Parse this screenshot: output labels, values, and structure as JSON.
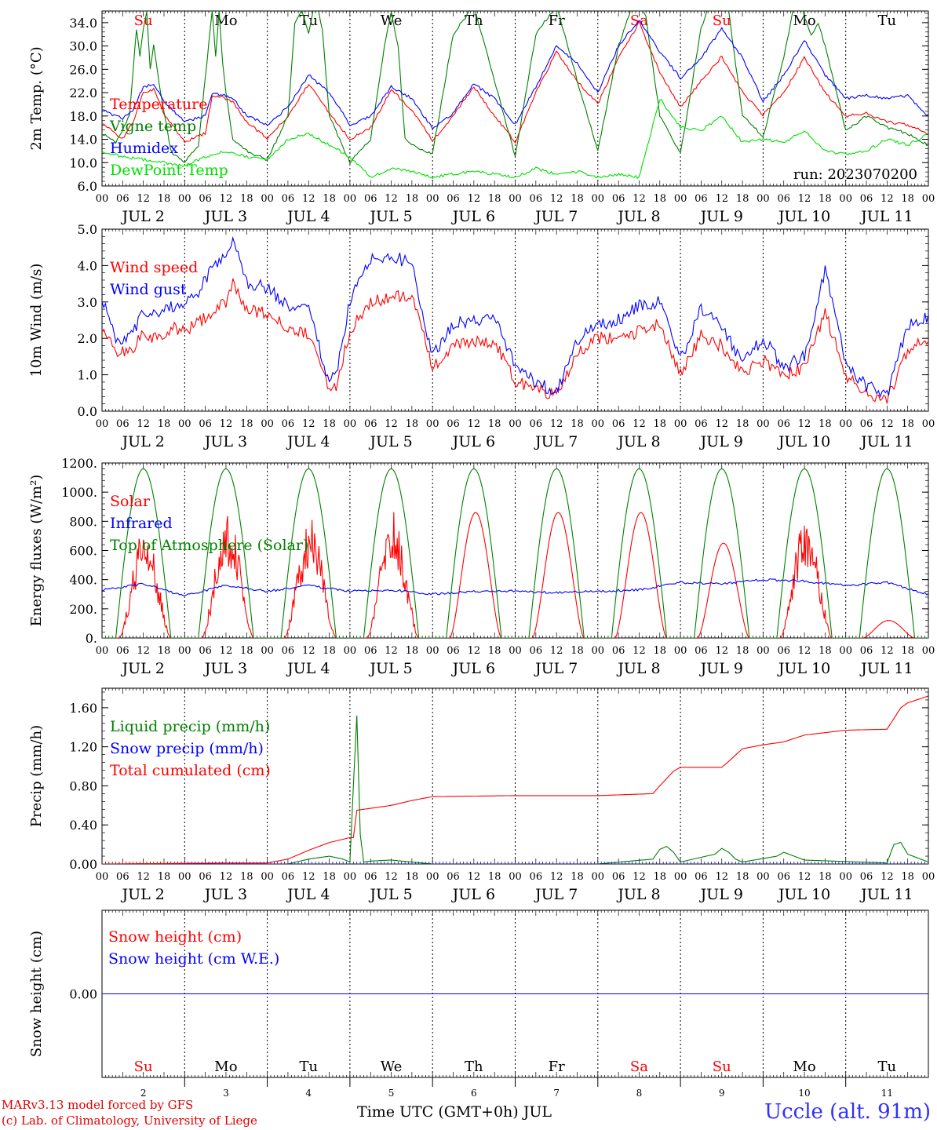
{
  "footer": {
    "model_line": "MARv3.13 model forced by GFS",
    "credit_line": "(c) Lab. of Climatology, University of Liege",
    "station": "Uccle (alt. 91m)",
    "time_axis_label": "Time UTC (GMT+0h) JUL"
  },
  "days": {
    "weekday_labels": [
      "Su",
      "Mo",
      "Tu",
      "We",
      "Th",
      "Fr",
      "Sa",
      "Su",
      "Mo",
      "Tu"
    ],
    "weekend_flags": [
      true,
      false,
      false,
      false,
      false,
      false,
      true,
      true,
      false,
      false
    ],
    "date_labels": [
      "JUL  2",
      "JUL  3",
      "JUL  4",
      "JUL  5",
      "JUL  6",
      "JUL  7",
      "JUL  8",
      "JUL  9",
      "JUL 10",
      "JUL 11"
    ],
    "day_numbers": [
      "2",
      "3",
      "4",
      "5",
      "6",
      "7",
      "8",
      "9",
      "10",
      "11"
    ],
    "hour_labels": [
      "00",
      "06",
      "12",
      "18"
    ],
    "end_hour_label": "00"
  },
  "colors": {
    "red": "#ff0000",
    "green": "#008000",
    "lightgreen": "#00e000",
    "blue": "#0000ff",
    "purple": "#800080"
  },
  "chart_data": [
    {
      "type": "line",
      "ylabel": "2m Temp. (°C)",
      "ylim": [
        6,
        36
      ],
      "yticks": [
        "6.0",
        "10.0",
        "14.0",
        "18.0",
        "22.0",
        "26.0",
        "30.0",
        "34.0"
      ],
      "annotation": "run: 2023070200",
      "x_unit": "hours since JUL 2 00 UTC",
      "series": [
        {
          "name": "Temperature",
          "color": "red",
          "x": [
            0,
            6,
            9,
            12,
            15,
            18,
            24,
            30,
            32,
            36,
            38,
            42,
            48,
            54,
            60,
            66,
            72,
            78,
            84,
            90,
            96,
            102,
            108,
            114,
            120,
            126,
            132,
            138,
            144,
            150,
            156,
            162,
            168,
            174,
            180,
            186,
            192,
            198,
            204,
            210,
            216,
            222,
            228,
            234,
            240
          ],
          "values": [
            16.8,
            14.0,
            17.0,
            22.0,
            22.6,
            18.5,
            13.5,
            15.0,
            21.5,
            21.0,
            20.5,
            17.0,
            14.2,
            18.0,
            23.5,
            18.5,
            14.0,
            16.0,
            22.5,
            19.0,
            13.8,
            18.0,
            23.0,
            18.0,
            13.5,
            22.0,
            29.0,
            24.0,
            20.0,
            28.0,
            34.0,
            25.5,
            19.5,
            24.0,
            28.2,
            22.0,
            18.2,
            22.0,
            28.0,
            22.0,
            18.0,
            18.5,
            17.0,
            16.5,
            15.0
          ]
        },
        {
          "name": "Vigne temp",
          "color": "green",
          "x": [
            0,
            4,
            8,
            10,
            11,
            12,
            13,
            14,
            15,
            17,
            20,
            24,
            28,
            32,
            33,
            34,
            35,
            36,
            38,
            42,
            48,
            54,
            56,
            58,
            60,
            62,
            64,
            66,
            72,
            78,
            82,
            84,
            86,
            88,
            90,
            96,
            102,
            108,
            114,
            120,
            126,
            132,
            138,
            144,
            150,
            154,
            156,
            158,
            162,
            168,
            174,
            178,
            180,
            182,
            186,
            192,
            198,
            202,
            204,
            206,
            208,
            210,
            216,
            222,
            228,
            234,
            240
          ],
          "values": [
            15.0,
            13.5,
            18.0,
            33.0,
            28.0,
            33.0,
            36.0,
            26.0,
            30.0,
            22.0,
            12.0,
            10.0,
            13.0,
            36.0,
            28.0,
            36.0,
            27.0,
            22.0,
            14.0,
            12.0,
            10.5,
            18.0,
            34.0,
            36.0,
            32.0,
            38.0,
            33.0,
            18.0,
            10.0,
            14.0,
            30.0,
            36.0,
            30.0,
            14.0,
            13.0,
            11.5,
            32.0,
            37.0,
            24.0,
            11.0,
            32.0,
            37.0,
            24.0,
            12.0,
            30.0,
            37.0,
            37.0,
            35.0,
            18.0,
            11.5,
            33.0,
            40.0,
            40.0,
            36.0,
            18.0,
            14.5,
            28.0,
            40.0,
            35.0,
            32.0,
            34.0,
            30.0,
            15.5,
            18.0,
            16.0,
            15.0,
            13.0
          ]
        },
        {
          "name": "Humidex",
          "color": "blue",
          "x": [
            0,
            6,
            9,
            12,
            15,
            18,
            24,
            30,
            32,
            36,
            38,
            42,
            48,
            54,
            60,
            66,
            72,
            78,
            84,
            90,
            96,
            102,
            108,
            114,
            120,
            126,
            132,
            138,
            144,
            150,
            156,
            162,
            168,
            174,
            180,
            186,
            192,
            198,
            204,
            210,
            216,
            222,
            228,
            234,
            240
          ],
          "values": [
            19.0,
            17.5,
            19.0,
            23.0,
            23.5,
            20.5,
            17.0,
            18.0,
            22.0,
            21.5,
            21.0,
            18.0,
            16.5,
            19.5,
            25.0,
            22.0,
            16.5,
            18.0,
            23.0,
            21.0,
            15.8,
            18.5,
            23.5,
            21.0,
            16.5,
            23.0,
            30.0,
            27.0,
            22.0,
            30.0,
            34.5,
            29.0,
            24.5,
            28.0,
            33.0,
            28.0,
            20.5,
            25.0,
            31.0,
            25.0,
            21.0,
            21.5,
            21.0,
            21.5,
            18.0
          ]
        },
        {
          "name": "DewPoint Temp",
          "color": "lightgreen",
          "x": [
            0,
            6,
            12,
            18,
            24,
            30,
            36,
            42,
            48,
            54,
            60,
            66,
            72,
            78,
            84,
            90,
            96,
            102,
            108,
            114,
            120,
            126,
            132,
            138,
            144,
            150,
            156,
            162,
            168,
            174,
            180,
            186,
            192,
            198,
            204,
            210,
            216,
            222,
            228,
            234,
            240
          ],
          "values": [
            12.0,
            11.0,
            10.5,
            10.0,
            9.5,
            11.0,
            12.0,
            11.0,
            10.5,
            14.0,
            15.0,
            13.0,
            11.0,
            7.5,
            9.0,
            8.5,
            7.5,
            8.0,
            8.5,
            8.0,
            7.5,
            9.0,
            8.0,
            8.5,
            7.5,
            8.0,
            7.5,
            21.0,
            16.0,
            15.5,
            18.0,
            13.5,
            14.0,
            13.5,
            15.5,
            12.0,
            11.5,
            12.0,
            14.0,
            13.0,
            15.0
          ]
        }
      ]
    },
    {
      "type": "line",
      "ylabel": "10m Wind (m/s)",
      "ylim": [
        0,
        5
      ],
      "yticks": [
        "0.0",
        "1.0",
        "2.0",
        "3.0",
        "4.0",
        "5.0"
      ],
      "x_unit": "hours since JUL 2 00 UTC",
      "series": [
        {
          "name": "Wind speed",
          "color": "red",
          "x": [
            0,
            4,
            8,
            12,
            16,
            20,
            24,
            28,
            32,
            36,
            38,
            42,
            48,
            54,
            60,
            66,
            68,
            72,
            78,
            84,
            90,
            96,
            102,
            108,
            114,
            120,
            126,
            132,
            138,
            144,
            150,
            156,
            162,
            168,
            174,
            180,
            186,
            192,
            198,
            204,
            210,
            216,
            222,
            228,
            234,
            240
          ],
          "values": [
            2.3,
            1.6,
            1.6,
            2.1,
            2.0,
            2.3,
            2.2,
            2.4,
            2.7,
            3.0,
            3.6,
            2.8,
            2.7,
            2.3,
            2.1,
            0.6,
            0.7,
            2.2,
            3.0,
            3.1,
            3.2,
            1.2,
            1.8,
            1.9,
            1.9,
            0.8,
            0.6,
            0.4,
            1.6,
            2.0,
            2.0,
            2.2,
            2.4,
            1.0,
            2.1,
            1.8,
            1.0,
            1.4,
            1.0,
            1.2,
            2.7,
            1.0,
            0.5,
            0.3,
            1.7,
            2.0
          ]
        },
        {
          "name": "Wind gust",
          "color": "blue",
          "x": [
            0,
            4,
            8,
            12,
            16,
            20,
            24,
            28,
            32,
            36,
            38,
            42,
            48,
            54,
            60,
            66,
            68,
            72,
            78,
            84,
            90,
            96,
            102,
            108,
            114,
            120,
            126,
            132,
            138,
            144,
            150,
            156,
            162,
            168,
            174,
            180,
            186,
            192,
            198,
            204,
            210,
            216,
            222,
            228,
            234,
            240
          ],
          "values": [
            3.1,
            2.0,
            2.0,
            2.7,
            2.6,
            2.9,
            2.9,
            3.3,
            3.9,
            4.2,
            4.8,
            3.5,
            3.4,
            2.9,
            2.8,
            0.8,
            1.0,
            3.0,
            4.2,
            4.3,
            4.0,
            1.5,
            2.4,
            2.5,
            2.6,
            1.2,
            0.8,
            0.5,
            1.9,
            2.4,
            2.5,
            2.9,
            3.0,
            1.4,
            2.8,
            2.3,
            1.3,
            2.0,
            1.2,
            1.5,
            3.9,
            1.3,
            0.7,
            0.4,
            2.4,
            2.6
          ]
        }
      ]
    },
    {
      "type": "line",
      "ylabel": "Energy fluxes (W/m²)",
      "ylim": [
        0,
        1200
      ],
      "yticks": [
        "0.",
        "200.",
        "400.",
        "600.",
        "800.",
        "1000.",
        "1200."
      ],
      "x_unit": "hours since JUL 2 00 UTC",
      "series": [
        {
          "name": "Solar",
          "color": "red",
          "day_peaks": [
            760,
            860,
            830,
            870,
            860,
            860,
            860,
            650,
            830,
            120
          ],
          "day_start_hour": 5,
          "day_end_hour": 20
        },
        {
          "name": "Infrared",
          "color": "blue",
          "x": [
            0,
            12,
            24,
            36,
            48,
            60,
            72,
            84,
            96,
            108,
            120,
            132,
            144,
            156,
            168,
            180,
            192,
            204,
            216,
            228,
            240
          ],
          "values": [
            330,
            370,
            290,
            360,
            320,
            360,
            320,
            330,
            300,
            320,
            320,
            310,
            320,
            330,
            380,
            370,
            400,
            390,
            360,
            380,
            300
          ]
        },
        {
          "name": "Top of Atmosphere (Solar)",
          "color": "green",
          "peak": 1160,
          "day_start_hour": 4,
          "day_end_hour": 20
        }
      ]
    },
    {
      "type": "line",
      "ylabel": "Precip (mm/h)",
      "ylim": [
        0,
        1.8
      ],
      "yticks": [
        "0.00",
        "0.40",
        "0.80",
        "1.20",
        "1.60"
      ],
      "x_unit": "hours since JUL 2 00 UTC",
      "series": [
        {
          "name": "Liquid precip (mm/h)",
          "color": "green",
          "x": [
            0,
            54,
            60,
            66,
            70,
            72,
            73,
            74,
            75,
            76,
            78,
            84,
            90,
            96,
            144,
            160,
            162,
            164,
            166,
            168,
            178,
            180,
            182,
            184,
            186,
            196,
            198,
            204,
            228,
            230,
            232,
            234,
            240
          ],
          "values": [
            0,
            0,
            0.05,
            0.08,
            0.05,
            0.02,
            0.8,
            1.52,
            0.3,
            0.02,
            0.03,
            0.04,
            0.02,
            0,
            0,
            0.05,
            0.15,
            0.18,
            0.12,
            0.02,
            0.1,
            0.16,
            0.12,
            0.05,
            0.02,
            0.08,
            0.12,
            0.04,
            0.01,
            0.2,
            0.22,
            0.1,
            0.02
          ]
        },
        {
          "name": "Snow precip (mm/h)",
          "color": "blue",
          "x": [
            0,
            240
          ],
          "values": [
            0,
            0
          ]
        },
        {
          "name": "Total cumulated (cm)",
          "color": "red",
          "x": [
            0,
            36,
            48,
            54,
            60,
            66,
            72,
            73,
            74,
            78,
            84,
            90,
            96,
            120,
            144,
            160,
            162,
            166,
            168,
            180,
            182,
            186,
            192,
            198,
            204,
            216,
            228,
            232,
            234,
            240
          ],
          "values": [
            0,
            0.01,
            0.01,
            0.05,
            0.14,
            0.22,
            0.27,
            0.27,
            0.55,
            0.57,
            0.6,
            0.65,
            0.69,
            0.7,
            0.7,
            0.72,
            0.8,
            0.95,
            0.99,
            0.99,
            1.05,
            1.18,
            1.22,
            1.25,
            1.32,
            1.37,
            1.38,
            1.6,
            1.65,
            1.72
          ]
        }
      ]
    },
    {
      "type": "line",
      "ylabel": "Snow height (cm)",
      "ylim": [
        -1,
        1
      ],
      "yticks": [
        "0.00"
      ],
      "x_unit": "hours since JUL 2 00 UTC",
      "series": [
        {
          "name": "Snow height (cm)",
          "color": "red",
          "x": [
            0,
            240
          ],
          "values": [
            0,
            0
          ]
        },
        {
          "name": "Snow height (cm W.E.)",
          "color": "blue",
          "x": [
            0,
            240
          ],
          "values": [
            0,
            0
          ]
        }
      ]
    }
  ]
}
